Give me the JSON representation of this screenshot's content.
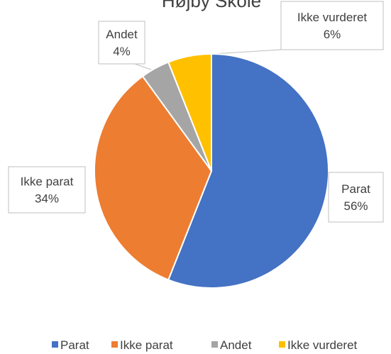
{
  "chart_data": {
    "type": "pie",
    "title": "Højby Skole",
    "categories": [
      "Parat",
      "Ikke parat",
      "Andet",
      "Ikke vurderet"
    ],
    "values": [
      56,
      34,
      4,
      6
    ],
    "value_labels": [
      "56%",
      "34%",
      "4%",
      "6%"
    ],
    "colors": [
      "#4472c4",
      "#ed7d31",
      "#a5a5a5",
      "#ffc000"
    ],
    "legend": "bottom"
  }
}
